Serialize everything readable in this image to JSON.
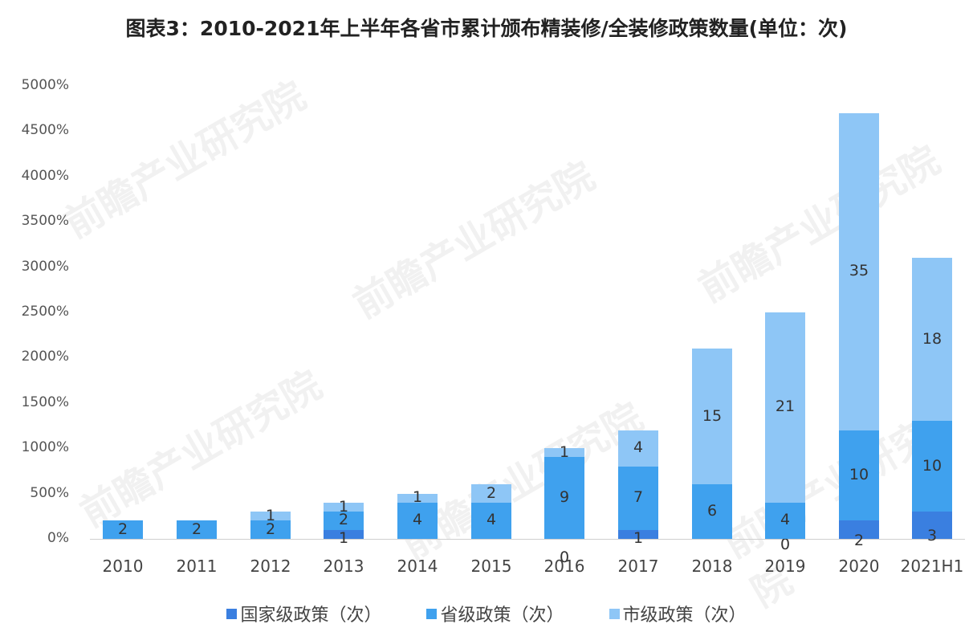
{
  "title": "图表3：2010-2021年上半年各省市累计颁布精装修/全装修政策数量(单位：次)",
  "colors": {
    "national": "#3a7fe0",
    "provincial": "#3fa1ee",
    "city": "#8ec6f6",
    "axis_text": "#555555",
    "label_text": "#333333"
  },
  "watermark": "前瞻产业研究院",
  "chart_data": {
    "type": "bar",
    "stacked": true,
    "title": "图表3：2010-2021年上半年各省市累计颁布精装修/全装修政策数量(单位：次)",
    "xlabel": "",
    "ylabel": "",
    "ylim": [
      0,
      5000
    ],
    "y_tick_labels": [
      "0%",
      "500%",
      "1000%",
      "1500%",
      "2000%",
      "2500%",
      "3000%",
      "3500%",
      "4000%",
      "4500%",
      "5000%"
    ],
    "grid": false,
    "legend_position": "bottom",
    "categories": [
      "2010",
      "2011",
      "2012",
      "2013",
      "2014",
      "2015",
      "2016",
      "2017",
      "2018",
      "2019",
      "2020",
      "2021H1"
    ],
    "series": [
      {
        "name": "国家级政策（次）",
        "values": [
          0,
          0,
          0,
          1,
          0,
          0,
          0,
          1,
          0,
          0,
          2,
          3
        ],
        "shown_labels": [
          null,
          null,
          null,
          "1",
          null,
          null,
          "0",
          "1",
          null,
          "0",
          "2",
          "3"
        ]
      },
      {
        "name": "省级政策（次）",
        "values": [
          2,
          2,
          2,
          2,
          4,
          4,
          9,
          7,
          6,
          4,
          10,
          10
        ],
        "shown_labels": [
          "2",
          "2",
          "2",
          "2",
          "4",
          "4",
          "9",
          "7",
          "6",
          "4",
          "10",
          "10"
        ]
      },
      {
        "name": "市级政策（次）",
        "values": [
          0,
          0,
          1,
          1,
          1,
          2,
          1,
          4,
          15,
          21,
          35,
          18
        ],
        "shown_labels": [
          null,
          null,
          "1",
          "1",
          "1",
          "2",
          "1",
          "4",
          "15",
          "21",
          "35",
          "18"
        ]
      }
    ]
  }
}
